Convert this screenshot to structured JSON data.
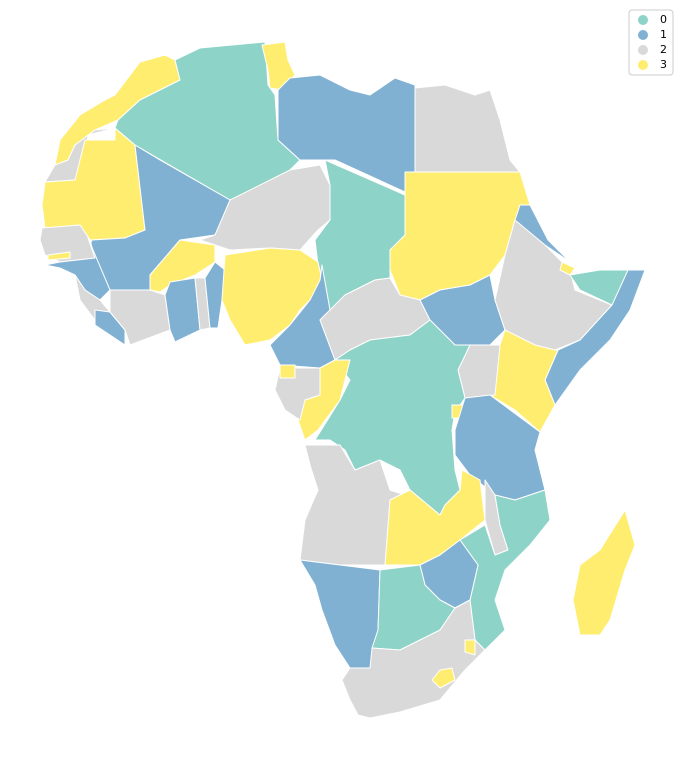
{
  "legend": {
    "items": [
      {
        "label": "0",
        "color": "#8dd3c7"
      },
      {
        "label": "1",
        "color": "#80b1d3"
      },
      {
        "label": "2",
        "color": "#d9d9d9"
      },
      {
        "label": "3",
        "color": "#ffed6f"
      }
    ]
  }
}
